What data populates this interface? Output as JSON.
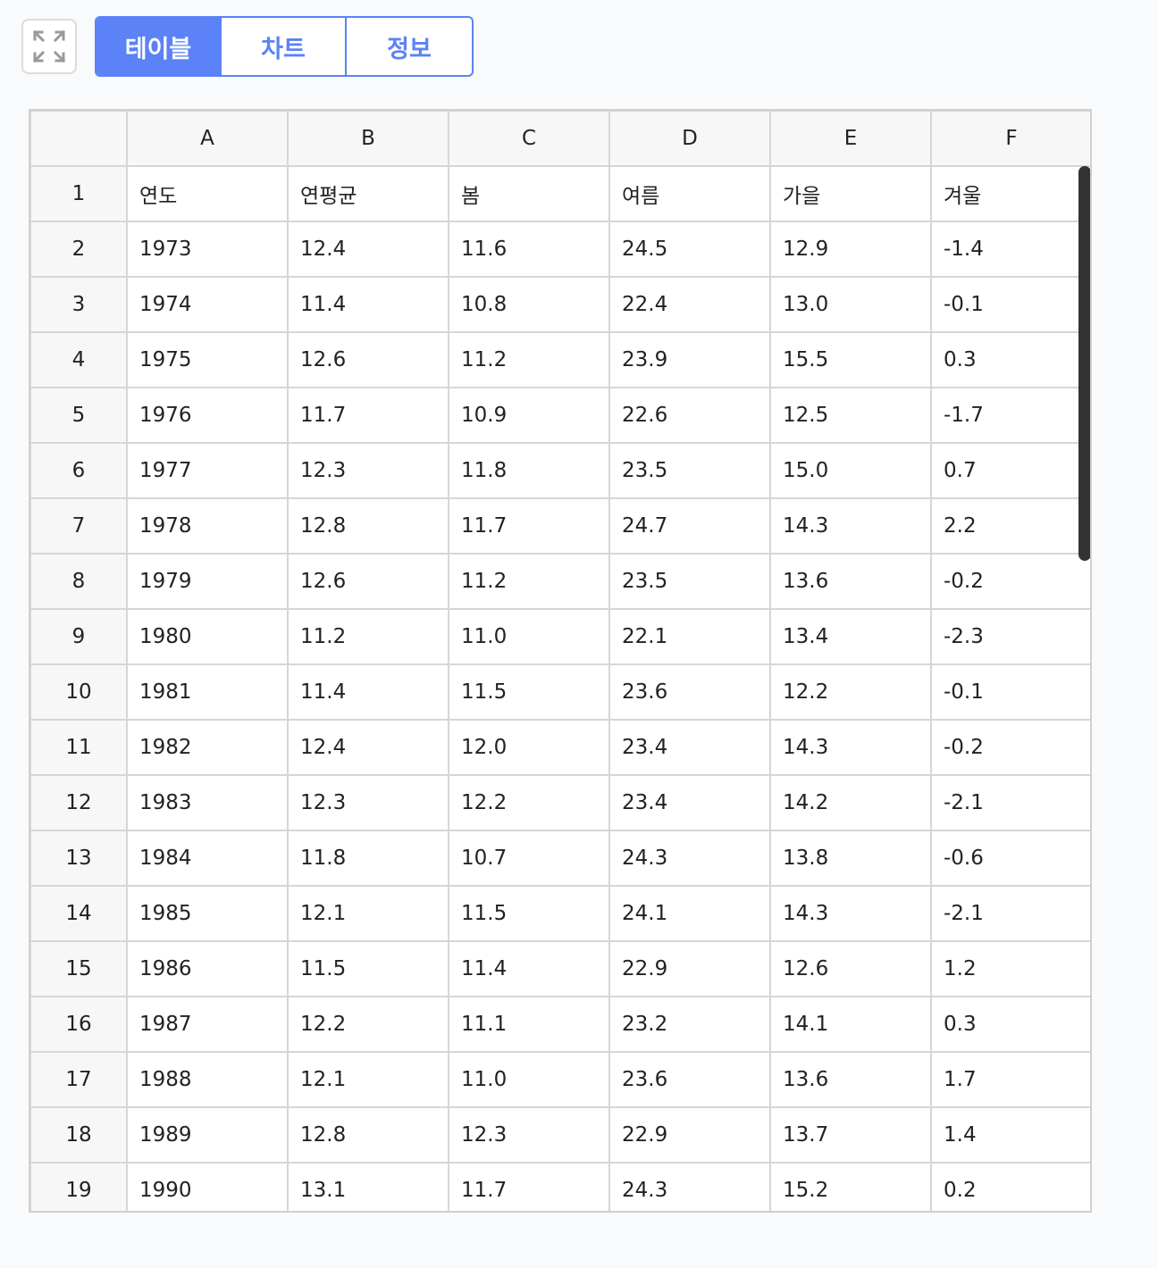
{
  "tabs": [
    {
      "label": "테이블",
      "active": true
    },
    {
      "label": "차트",
      "active": false
    },
    {
      "label": "정보",
      "active": false
    }
  ],
  "icons": {
    "expand": "expand-icon"
  },
  "colors": {
    "accent": "#5b82f6"
  },
  "sheet": {
    "columns": [
      "A",
      "B",
      "C",
      "D",
      "E",
      "F"
    ],
    "rows": [
      {
        "n": "1",
        "cells": [
          "연도",
          "연평균",
          "봄",
          "여름",
          "가을",
          "겨울"
        ]
      },
      {
        "n": "2",
        "cells": [
          "1973",
          "12.4",
          "11.6",
          "24.5",
          "12.9",
          "-1.4"
        ]
      },
      {
        "n": "3",
        "cells": [
          "1974",
          "11.4",
          "10.8",
          "22.4",
          "13.0",
          "-0.1"
        ]
      },
      {
        "n": "4",
        "cells": [
          "1975",
          "12.6",
          "11.2",
          "23.9",
          "15.5",
          "0.3"
        ]
      },
      {
        "n": "5",
        "cells": [
          "1976",
          "11.7",
          "10.9",
          "22.6",
          "12.5",
          "-1.7"
        ]
      },
      {
        "n": "6",
        "cells": [
          "1977",
          "12.3",
          "11.8",
          "23.5",
          "15.0",
          "0.7"
        ]
      },
      {
        "n": "7",
        "cells": [
          "1978",
          "12.8",
          "11.7",
          "24.7",
          "14.3",
          "2.2"
        ]
      },
      {
        "n": "8",
        "cells": [
          "1979",
          "12.6",
          "11.2",
          "23.5",
          "13.6",
          "-0.2"
        ]
      },
      {
        "n": "9",
        "cells": [
          "1980",
          "11.2",
          "11.0",
          "22.1",
          "13.4",
          "-2.3"
        ]
      },
      {
        "n": "10",
        "cells": [
          "1981",
          "11.4",
          "11.5",
          "23.6",
          "12.2",
          "-0.1"
        ]
      },
      {
        "n": "11",
        "cells": [
          "1982",
          "12.4",
          "12.0",
          "23.4",
          "14.3",
          "-0.2"
        ]
      },
      {
        "n": "12",
        "cells": [
          "1983",
          "12.3",
          "12.2",
          "23.4",
          "14.2",
          "-2.1"
        ]
      },
      {
        "n": "13",
        "cells": [
          "1984",
          "11.8",
          "10.7",
          "24.3",
          "13.8",
          "-0.6"
        ]
      },
      {
        "n": "14",
        "cells": [
          "1985",
          "12.1",
          "11.5",
          "24.1",
          "14.3",
          "-2.1"
        ]
      },
      {
        "n": "15",
        "cells": [
          "1986",
          "11.5",
          "11.4",
          "22.9",
          "12.6",
          "1.2"
        ]
      },
      {
        "n": "16",
        "cells": [
          "1987",
          "12.2",
          "11.1",
          "23.2",
          "14.1",
          "0.3"
        ]
      },
      {
        "n": "17",
        "cells": [
          "1988",
          "12.1",
          "11.0",
          "23.6",
          "13.6",
          "1.7"
        ]
      },
      {
        "n": "18",
        "cells": [
          "1989",
          "12.8",
          "12.3",
          "22.9",
          "13.7",
          "1.4"
        ]
      },
      {
        "n": "19",
        "cells": [
          "1990",
          "13.1",
          "11.7",
          "24.3",
          "15.2",
          "0.2"
        ]
      }
    ]
  }
}
